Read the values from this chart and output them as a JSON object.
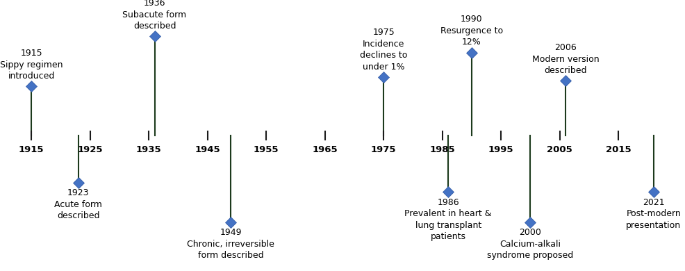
{
  "x_min": 1912,
  "x_max": 2024,
  "axis_y": 0,
  "tick_years": [
    1915,
    1925,
    1935,
    1945,
    1955,
    1965,
    1975,
    1985,
    1995,
    2005,
    2015
  ],
  "tick_fontsize": 9.5,
  "tick_fontweight": "bold",
  "events_above": [
    {
      "year": 1915,
      "lines": [
        "1915",
        "Sippy regimen",
        "introduced"
      ],
      "stem_height": 0.52
    },
    {
      "year": 1936,
      "lines": [
        "1936",
        "Subacute form",
        "described"
      ],
      "stem_height": 1.05
    },
    {
      "year": 1975,
      "lines": [
        "1975",
        "Incidence",
        "declines to",
        "under 1%"
      ],
      "stem_height": 0.62
    },
    {
      "year": 1990,
      "lines": [
        "1990",
        "Resurgence to",
        "12%"
      ],
      "stem_height": 0.88
    },
    {
      "year": 2006,
      "lines": [
        "2006",
        "Modern version",
        "described"
      ],
      "stem_height": 0.58
    }
  ],
  "events_below": [
    {
      "year": 1923,
      "lines": [
        "1923",
        "Acute form",
        "described"
      ],
      "stem_height": -0.5
    },
    {
      "year": 1949,
      "lines": [
        "1949",
        "Chronic, irreversible",
        "form described"
      ],
      "stem_height": -0.92
    },
    {
      "year": 1986,
      "lines": [
        "1986",
        "Prevalent in heart &",
        "lung transplant",
        "patients"
      ],
      "stem_height": -0.6
    },
    {
      "year": 2000,
      "lines": [
        "2000",
        "Calcium-alkali",
        "syndrome proposed"
      ],
      "stem_height": -0.92
    },
    {
      "year": 2021,
      "lines": [
        "2021",
        "Post-modern",
        "presentation"
      ],
      "stem_height": -0.6
    }
  ],
  "marker_color": "#4472C4",
  "marker_edge_color": "#2E57A0",
  "stem_color": "#1C3A1C",
  "axis_color": "#1a1a1a",
  "text_color": "#000000",
  "font_size": 9.0,
  "background_color": "#ffffff",
  "ylim_top": 1.35,
  "ylim_bottom": -1.35
}
